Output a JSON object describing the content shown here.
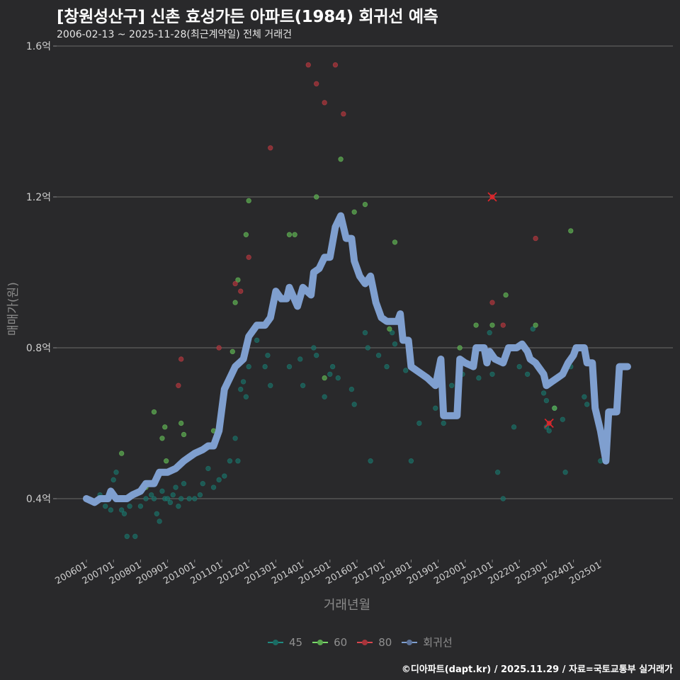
{
  "header": {
    "title": "[창원성산구] 신촌 효성가든 아파트(1984) 회귀선 예측",
    "subtitle": "2006-02-13 ~ 2025-11-28(최근계약일) 전체 거래건"
  },
  "axes": {
    "ylabel": "매매가(원)",
    "xlabel": "거래년월",
    "yticks": [
      {
        "label": "0.4억",
        "v": 0.4
      },
      {
        "label": "0.8억",
        "v": 0.8
      },
      {
        "label": "1.2억",
        "v": 1.2
      },
      {
        "label": "1.6억",
        "v": 1.6
      }
    ],
    "xticks": [
      "200601",
      "200701",
      "200801",
      "200901",
      "201001",
      "201101",
      "201201",
      "201301",
      "201401",
      "201501",
      "201601",
      "201701",
      "201801",
      "201901",
      "202001",
      "202101",
      "202201",
      "202301",
      "202401",
      "202501"
    ]
  },
  "legend": [
    {
      "label": "45",
      "color": "#1f8a80"
    },
    {
      "label": "60",
      "color": "#7ad96a"
    },
    {
      "label": "80",
      "color": "#d9464e"
    },
    {
      "label": "회귀선",
      "color": "#7f9fcf"
    }
  ],
  "credit": "©디아파트(dapt.kr) / 2025.11.29 / 자료=국토교통부 실거래가",
  "chart_data": {
    "type": "scatter",
    "title": "[창원성산구] 신촌 효성가든 아파트(1984) 회귀선 예측",
    "subtitle": "2006-02-13 ~ 2025-11-28(최근계약일) 전체 거래건",
    "xlabel": "거래년월",
    "ylabel": "매매가(원)",
    "ylim": [
      0.22,
      1.6
    ],
    "y_unit": "억",
    "grid": "horizontal",
    "legend_position": "bottom",
    "series": [
      {
        "name": "45",
        "color": "#1f8a80",
        "points": [
          [
            2006.5,
            0.41
          ],
          [
            2006.7,
            0.38
          ],
          [
            2006.9,
            0.37
          ],
          [
            2007.0,
            0.45
          ],
          [
            2007.1,
            0.47
          ],
          [
            2007.3,
            0.37
          ],
          [
            2007.4,
            0.36
          ],
          [
            2007.5,
            0.3
          ],
          [
            2007.6,
            0.38
          ],
          [
            2007.8,
            0.3
          ],
          [
            2008.0,
            0.38
          ],
          [
            2008.2,
            0.4
          ],
          [
            2008.4,
            0.41
          ],
          [
            2008.5,
            0.4
          ],
          [
            2008.6,
            0.36
          ],
          [
            2008.7,
            0.34
          ],
          [
            2008.8,
            0.42
          ],
          [
            2008.9,
            0.4
          ],
          [
            2009.0,
            0.4
          ],
          [
            2009.1,
            0.39
          ],
          [
            2009.2,
            0.41
          ],
          [
            2009.3,
            0.43
          ],
          [
            2009.4,
            0.38
          ],
          [
            2009.5,
            0.4
          ],
          [
            2009.6,
            0.44
          ],
          [
            2009.8,
            0.4
          ],
          [
            2010.0,
            0.4
          ],
          [
            2010.2,
            0.41
          ],
          [
            2010.3,
            0.44
          ],
          [
            2010.5,
            0.48
          ],
          [
            2010.7,
            0.43
          ],
          [
            2010.9,
            0.45
          ],
          [
            2011.1,
            0.46
          ],
          [
            2011.3,
            0.5
          ],
          [
            2011.5,
            0.56
          ],
          [
            2011.6,
            0.5
          ],
          [
            2011.7,
            0.69
          ],
          [
            2011.8,
            0.71
          ],
          [
            2011.9,
            0.67
          ],
          [
            2012.0,
            0.75
          ],
          [
            2012.3,
            0.82
          ],
          [
            2012.6,
            0.75
          ],
          [
            2012.7,
            0.78
          ],
          [
            2012.8,
            0.7
          ],
          [
            2013.5,
            0.75
          ],
          [
            2013.9,
            0.77
          ],
          [
            2014.0,
            0.7
          ],
          [
            2014.4,
            0.8
          ],
          [
            2014.5,
            0.78
          ],
          [
            2014.8,
            0.67
          ],
          [
            2015.0,
            0.73
          ],
          [
            2015.1,
            0.75
          ],
          [
            2015.3,
            0.72
          ],
          [
            2015.8,
            0.69
          ],
          [
            2015.9,
            0.65
          ],
          [
            2016.3,
            0.84
          ],
          [
            2016.4,
            0.8
          ],
          [
            2016.5,
            0.5
          ],
          [
            2016.8,
            0.78
          ],
          [
            2017.1,
            0.75
          ],
          [
            2017.3,
            0.84
          ],
          [
            2017.4,
            0.81
          ],
          [
            2017.8,
            0.74
          ],
          [
            2018.0,
            0.5
          ],
          [
            2018.3,
            0.6
          ],
          [
            2018.9,
            0.64
          ],
          [
            2019.2,
            0.6
          ],
          [
            2019.5,
            0.7
          ],
          [
            2019.9,
            0.73
          ],
          [
            2020.5,
            0.72
          ],
          [
            2020.9,
            0.84
          ],
          [
            2021.0,
            0.73
          ],
          [
            2021.2,
            0.47
          ],
          [
            2021.4,
            0.4
          ],
          [
            2021.8,
            0.59
          ],
          [
            2022.0,
            0.75
          ],
          [
            2022.3,
            0.73
          ],
          [
            2022.5,
            0.85
          ],
          [
            2022.9,
            0.68
          ],
          [
            2023.0,
            0.66
          ],
          [
            2023.0,
            0.59
          ],
          [
            2023.1,
            0.58
          ],
          [
            2023.3,
            0.64
          ],
          [
            2023.6,
            0.61
          ],
          [
            2023.7,
            0.47
          ],
          [
            2023.9,
            0.75
          ],
          [
            2024.4,
            0.67
          ],
          [
            2024.5,
            0.65
          ],
          [
            2025.0,
            0.5
          ]
        ]
      },
      {
        "name": "60",
        "color": "#7ad96a",
        "points": [
          [
            2007.3,
            0.52
          ],
          [
            2008.2,
            0.43
          ],
          [
            2008.5,
            0.63
          ],
          [
            2008.8,
            0.56
          ],
          [
            2008.9,
            0.59
          ],
          [
            2008.95,
            0.5
          ],
          [
            2009.5,
            0.6
          ],
          [
            2009.6,
            0.57
          ],
          [
            2010.7,
            0.58
          ],
          [
            2011.4,
            0.79
          ],
          [
            2011.5,
            0.92
          ],
          [
            2011.6,
            0.98
          ],
          [
            2011.9,
            1.1
          ],
          [
            2012.0,
            1.19
          ],
          [
            2013.5,
            1.1
          ],
          [
            2013.7,
            1.1
          ],
          [
            2014.5,
            1.2
          ],
          [
            2014.8,
            0.72
          ],
          [
            2015.4,
            1.3
          ],
          [
            2015.9,
            1.16
          ],
          [
            2016.3,
            1.18
          ],
          [
            2016.9,
            0.88
          ],
          [
            2017.2,
            0.85
          ],
          [
            2017.4,
            1.08
          ],
          [
            2019.8,
            0.8
          ],
          [
            2020.4,
            0.86
          ],
          [
            2021.0,
            0.86
          ],
          [
            2021.5,
            0.94
          ],
          [
            2022.6,
            0.86
          ],
          [
            2023.3,
            0.64
          ],
          [
            2023.9,
            1.11
          ]
        ]
      },
      {
        "name": "80",
        "color": "#d9464e",
        "points": [
          [
            2009.4,
            0.7
          ],
          [
            2009.5,
            0.77
          ],
          [
            2010.9,
            0.8
          ],
          [
            2011.5,
            0.97
          ],
          [
            2011.7,
            0.95
          ],
          [
            2012.0,
            1.04
          ],
          [
            2012.8,
            1.33
          ],
          [
            2014.2,
            1.55
          ],
          [
            2014.5,
            1.5
          ],
          [
            2014.8,
            1.45
          ],
          [
            2015.2,
            1.55
          ],
          [
            2015.5,
            1.42
          ],
          [
            2021.0,
            1.2
          ],
          [
            2021.0,
            0.92
          ],
          [
            2021.4,
            0.86
          ],
          [
            2021.5,
            0.78
          ],
          [
            2022.2,
            0.8
          ],
          [
            2022.6,
            1.09
          ],
          [
            2023.1,
            0.6
          ]
        ]
      }
    ],
    "outliers_x": [
      [
        2021.0,
        1.2
      ],
      [
        2023.1,
        0.6
      ]
    ],
    "regression": {
      "name": "회귀선",
      "color": "#7f9fcf",
      "points": [
        [
          2006.0,
          0.4
        ],
        [
          2006.3,
          0.39
        ],
        [
          2006.5,
          0.4
        ],
        [
          2006.8,
          0.4
        ],
        [
          2006.9,
          0.42
        ],
        [
          2007.1,
          0.4
        ],
        [
          2007.5,
          0.4
        ],
        [
          2007.7,
          0.41
        ],
        [
          2008.0,
          0.42
        ],
        [
          2008.2,
          0.44
        ],
        [
          2008.5,
          0.44
        ],
        [
          2008.7,
          0.47
        ],
        [
          2009.0,
          0.47
        ],
        [
          2009.3,
          0.48
        ],
        [
          2009.6,
          0.5
        ],
        [
          2009.8,
          0.51
        ],
        [
          2010.0,
          0.52
        ],
        [
          2010.3,
          0.53
        ],
        [
          2010.5,
          0.54
        ],
        [
          2010.7,
          0.54
        ],
        [
          2010.9,
          0.58
        ],
        [
          2011.1,
          0.69
        ],
        [
          2011.3,
          0.72
        ],
        [
          2011.5,
          0.75
        ],
        [
          2011.8,
          0.77
        ],
        [
          2012.0,
          0.83
        ],
        [
          2012.3,
          0.86
        ],
        [
          2012.6,
          0.86
        ],
        [
          2012.8,
          0.88
        ],
        [
          2013.0,
          0.95
        ],
        [
          2013.2,
          0.93
        ],
        [
          2013.4,
          0.93
        ],
        [
          2013.5,
          0.96
        ],
        [
          2013.8,
          0.91
        ],
        [
          2014.0,
          0.96
        ],
        [
          2014.3,
          0.94
        ],
        [
          2014.4,
          1.0
        ],
        [
          2014.6,
          1.01
        ],
        [
          2014.8,
          1.04
        ],
        [
          2015.0,
          1.04
        ],
        [
          2015.2,
          1.12
        ],
        [
          2015.4,
          1.15
        ],
        [
          2015.6,
          1.09
        ],
        [
          2015.8,
          1.09
        ],
        [
          2015.9,
          1.03
        ],
        [
          2016.1,
          0.99
        ],
        [
          2016.3,
          0.97
        ],
        [
          2016.5,
          0.99
        ],
        [
          2016.7,
          0.92
        ],
        [
          2016.9,
          0.88
        ],
        [
          2017.1,
          0.87
        ],
        [
          2017.5,
          0.87
        ],
        [
          2017.6,
          0.89
        ],
        [
          2017.7,
          0.82
        ],
        [
          2017.9,
          0.82
        ],
        [
          2018.0,
          0.75
        ],
        [
          2018.4,
          0.73
        ],
        [
          2018.6,
          0.72
        ],
        [
          2018.9,
          0.7
        ],
        [
          2019.1,
          0.77
        ],
        [
          2019.2,
          0.62
        ],
        [
          2019.7,
          0.62
        ],
        [
          2019.8,
          0.77
        ],
        [
          2020.0,
          0.76
        ],
        [
          2020.3,
          0.75
        ],
        [
          2020.4,
          0.8
        ],
        [
          2020.7,
          0.8
        ],
        [
          2020.8,
          0.76
        ],
        [
          2020.9,
          0.79
        ],
        [
          2021.1,
          0.77
        ],
        [
          2021.4,
          0.76
        ],
        [
          2021.6,
          0.8
        ],
        [
          2021.9,
          0.8
        ],
        [
          2022.1,
          0.81
        ],
        [
          2022.3,
          0.79
        ],
        [
          2022.4,
          0.77
        ],
        [
          2022.6,
          0.76
        ],
        [
          2022.9,
          0.73
        ],
        [
          2023.0,
          0.7
        ],
        [
          2023.2,
          0.71
        ],
        [
          2023.4,
          0.72
        ],
        [
          2023.6,
          0.73
        ],
        [
          2023.8,
          0.76
        ],
        [
          2024.0,
          0.78
        ],
        [
          2024.1,
          0.8
        ],
        [
          2024.4,
          0.8
        ],
        [
          2024.5,
          0.76
        ],
        [
          2024.7,
          0.76
        ],
        [
          2024.8,
          0.64
        ],
        [
          2025.0,
          0.58
        ],
        [
          2025.2,
          0.5
        ],
        [
          2025.3,
          0.63
        ],
        [
          2025.6,
          0.63
        ],
        [
          2025.7,
          0.75
        ],
        [
          2026.0,
          0.75
        ]
      ]
    }
  }
}
